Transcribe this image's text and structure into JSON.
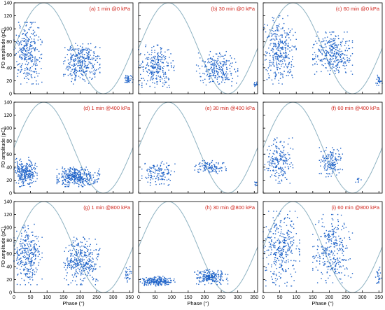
{
  "figure": {
    "ylabel": "PD amplitude (pC)",
    "xlabel": "Phase (°)",
    "colors": {
      "points": "#1f63c8",
      "sine": "#8fb3c2",
      "panel_label": "#d1251d",
      "axis": "#000000"
    }
  },
  "chart_data": [
    {
      "type": "scatter",
      "label": "(a) 1 min @0 kPa",
      "xlim": [
        0,
        360
      ],
      "ylim": [
        0,
        140
      ],
      "xticks": [
        0,
        50,
        100,
        150,
        200,
        250,
        300,
        350
      ],
      "yticks": [
        0,
        20,
        40,
        60,
        80,
        100,
        120,
        140
      ],
      "xlabel": "",
      "ylabel": "PD amplitude (pC)",
      "reference_curve": "sine, peak at 90°",
      "clusters": [
        {
          "x": [
            0,
            85
          ],
          "y": [
            15,
            110
          ],
          "count": 300
        },
        {
          "x": [
            150,
            260
          ],
          "y": [
            15,
            80
          ],
          "count": 320
        },
        {
          "x": [
            330,
            360
          ],
          "y": [
            15,
            30
          ],
          "count": 40
        }
      ]
    },
    {
      "type": "scatter",
      "label": "(b) 30 min @0 kPa",
      "xlim": [
        0,
        360
      ],
      "ylim": [
        0,
        140
      ],
      "xticks": [
        0,
        50,
        100,
        150,
        200,
        250,
        300,
        350
      ],
      "yticks": [
        0,
        20,
        40,
        60,
        80,
        100,
        120,
        140
      ],
      "xlabel": "",
      "ylabel": "",
      "reference_curve": "sine, peak at 90°",
      "clusters": [
        {
          "x": [
            0,
            110
          ],
          "y": [
            10,
            75
          ],
          "count": 260
        },
        {
          "x": [
            175,
            300
          ],
          "y": [
            12,
            65
          ],
          "count": 240
        },
        {
          "x": [
            345,
            360
          ],
          "y": [
            10,
            20
          ],
          "count": 15
        }
      ]
    },
    {
      "type": "scatter",
      "label": "(c) 60 min @0 kPa",
      "xlim": [
        0,
        360
      ],
      "ylim": [
        0,
        140
      ],
      "xticks": [
        0,
        50,
        100,
        150,
        200,
        250,
        300,
        350
      ],
      "yticks": [
        0,
        20,
        40,
        60,
        80,
        100,
        120,
        140
      ],
      "xlabel": "",
      "ylabel": "",
      "reference_curve": "sine, peak at 90°",
      "clusters": [
        {
          "x": [
            0,
            100
          ],
          "y": [
            15,
            120
          ],
          "count": 330
        },
        {
          "x": [
            150,
            270
          ],
          "y": [
            30,
            95
          ],
          "count": 320
        },
        {
          "x": [
            340,
            360
          ],
          "y": [
            10,
            30
          ],
          "count": 25
        }
      ]
    },
    {
      "type": "scatter",
      "label": "(d) 1 min @400 kPa",
      "xlim": [
        0,
        360
      ],
      "ylim": [
        0,
        140
      ],
      "xticks": [
        0,
        50,
        100,
        150,
        200,
        250,
        300,
        350
      ],
      "yticks": [
        0,
        20,
        40,
        60,
        80,
        100,
        120,
        140
      ],
      "xlabel": "",
      "ylabel": "PD amplitude (pC)",
      "reference_curve": "sine, peak at 90°",
      "clusters": [
        {
          "x": [
            0,
            70
          ],
          "y": [
            10,
            55
          ],
          "count": 260
        },
        {
          "x": [
            130,
            245
          ],
          "y": [
            10,
            40
          ],
          "count": 340
        },
        {
          "x": [
            250,
            260
          ],
          "y": [
            15,
            45
          ],
          "count": 15
        }
      ]
    },
    {
      "type": "scatter",
      "label": "(e) 30 min @400 kPa",
      "xlim": [
        0,
        360
      ],
      "ylim": [
        0,
        140
      ],
      "xticks": [
        0,
        50,
        100,
        150,
        200,
        250,
        300,
        350
      ],
      "yticks": [
        0,
        20,
        40,
        60,
        80,
        100,
        120,
        140
      ],
      "xlabel": "",
      "ylabel": "",
      "reference_curve": "sine, peak at 90°",
      "clusters": [
        {
          "x": [
            10,
            110
          ],
          "y": [
            12,
            50
          ],
          "count": 130
        },
        {
          "x": [
            170,
            265
          ],
          "y": [
            30,
            50
          ],
          "count": 110
        },
        {
          "x": [
            350,
            360
          ],
          "y": [
            10,
            20
          ],
          "count": 10
        }
      ]
    },
    {
      "type": "scatter",
      "label": "(f) 60 min @400 kPa",
      "xlim": [
        0,
        360
      ],
      "ylim": [
        0,
        140
      ],
      "xticks": [
        0,
        50,
        100,
        150,
        200,
        250,
        300,
        350
      ],
      "yticks": [
        0,
        20,
        40,
        60,
        80,
        100,
        120,
        140
      ],
      "xlabel": "",
      "ylabel": "",
      "reference_curve": "sine, peak at 90°",
      "clusters": [
        {
          "x": [
            5,
            90
          ],
          "y": [
            15,
            85
          ],
          "count": 200
        },
        {
          "x": [
            170,
            240
          ],
          "y": [
            25,
            70
          ],
          "count": 150
        },
        {
          "x": [
            280,
            300
          ],
          "y": [
            15,
            25
          ],
          "count": 10
        }
      ]
    },
    {
      "type": "scatter",
      "label": "(g) 1 min @800 kPa",
      "xlim": [
        0,
        360
      ],
      "ylim": [
        0,
        140
      ],
      "xticks": [
        0,
        50,
        100,
        150,
        200,
        250,
        300,
        350
      ],
      "yticks": [
        0,
        20,
        40,
        60,
        80,
        100,
        120,
        140
      ],
      "xlabel": "Phase (°)",
      "ylabel": "PD amplitude (pC)",
      "reference_curve": "sine, peak at 90°",
      "clusters": [
        {
          "x": [
            0,
            85
          ],
          "y": [
            12,
            105
          ],
          "count": 300
        },
        {
          "x": [
            150,
            260
          ],
          "y": [
            12,
            85
          ],
          "count": 330
        },
        {
          "x": [
            330,
            360
          ],
          "y": [
            12,
            40
          ],
          "count": 30
        }
      ]
    },
    {
      "type": "scatter",
      "label": "(h) 30 min @800 kPa",
      "xlim": [
        0,
        360
      ],
      "ylim": [
        0,
        140
      ],
      "xticks": [
        0,
        50,
        100,
        150,
        200,
        250,
        300,
        350
      ],
      "yticks": [
        0,
        20,
        40,
        60,
        80,
        100,
        120,
        140
      ],
      "xlabel": "Phase (°)",
      "ylabel": "",
      "reference_curve": "sine, peak at 90°",
      "clusters": [
        {
          "x": [
            5,
            110
          ],
          "y": [
            10,
            25
          ],
          "count": 220
        },
        {
          "x": [
            170,
            270
          ],
          "y": [
            12,
            35
          ],
          "count": 200
        }
      ]
    },
    {
      "type": "scatter",
      "label": "(i) 60 min @800 kPa",
      "xlim": [
        0,
        360
      ],
      "ylim": [
        0,
        140
      ],
      "xticks": [
        0,
        50,
        100,
        150,
        200,
        250,
        300,
        350
      ],
      "yticks": [
        0,
        20,
        40,
        60,
        80,
        100,
        120,
        140
      ],
      "xlabel": "Phase (°)",
      "ylabel": "",
      "reference_curve": "sine, peak at 90°",
      "clusters": [
        {
          "x": [
            0,
            110
          ],
          "y": [
            10,
            125
          ],
          "count": 320
        },
        {
          "x": [
            150,
            270
          ],
          "y": [
            15,
            120
          ],
          "count": 300
        },
        {
          "x": [
            340,
            360
          ],
          "y": [
            10,
            40
          ],
          "count": 25
        }
      ]
    }
  ]
}
